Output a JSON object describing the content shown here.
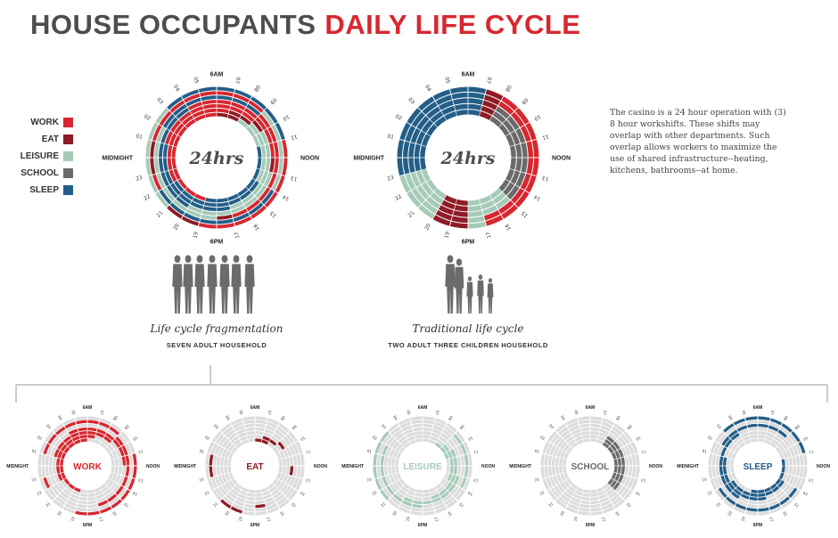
{
  "title": {
    "part1": "HOUSE OCCUPANTS",
    "part2": "DAILY LIFE CYCLE"
  },
  "colors": {
    "work": "#d7272f",
    "eat": "#8e1b25",
    "leisure": "#a5cbb8",
    "school": "#6a6a6a",
    "sleep": "#235e88",
    "empty": "#dcdcdc",
    "text": "#4d4d4f"
  },
  "legend": [
    {
      "label": "WORK",
      "color": "#d7272f"
    },
    {
      "label": "EAT",
      "color": "#8e1b25"
    },
    {
      "label": "LEISURE",
      "color": "#a5cbb8"
    },
    {
      "label": "SCHOOL",
      "color": "#6a6a6a"
    },
    {
      "label": "SLEEP",
      "color": "#235e88"
    }
  ],
  "note": "The casino is a 24 hour operation with (3) 8 hour workshifts. These shifts may overlap with other departments. Such overlap allows workers to maximize the use of shared infrastructure--heating, kitchens, bathrooms--at home.",
  "clock": {
    "top": "6AM",
    "right": "NOON",
    "bottom": "6PM",
    "left": "MIDNIGHT",
    "hours": [
      "01",
      "02",
      "03",
      "04",
      "05",
      "07",
      "08",
      "09",
      "10",
      "11",
      "13",
      "14",
      "15",
      "16",
      "17",
      "19",
      "20",
      "21",
      "22",
      "23"
    ],
    "center_label": "24hrs"
  },
  "captions": [
    {
      "title": "Life cycle fragmentation",
      "subtitle": "SEVEN ADULT HOUSEHOLD"
    },
    {
      "title": "Traditional life cycle",
      "subtitle": "TWO ADULT THREE CHILDREN HOUSEHOLD"
    }
  ],
  "small_labels": [
    "WORK",
    "EAT",
    "LEISURE",
    "SCHOOL",
    "SLEEP"
  ],
  "chart_data": [
    {
      "type": "radial-timeline",
      "subtitle": "SEVEN ADULT HOUSEHOLD",
      "caption": "Life cycle fragmentation",
      "center": "24hrs",
      "hours_per_ring": 24,
      "rings_inner_to_outer": [
        "WWWWWWEELLLSSSSSSSSWWWWW",
        "WWWWWWWEELLLLLSSSSSSSSWW",
        "SWWWWWWWWELLLLLLLSSSSSSS",
        "SSSSWWWWWWWWELLLLLLLSSSS",
        "LLSSSSSSSWWWWWWWWELLLLLL",
        "EWWWWWWWWLLLLLSSSSSSSSWE",
        "LLLSSSSSSSSWWWWWWWWEELLL"
      ]
    },
    {
      "type": "radial-timeline",
      "subtitle": "TWO ADULT THREE CHILDREN HOUSEHOLD",
      "caption": "Traditional life cycle",
      "center": "24hrs",
      "hours_per_ring": 24,
      "rings_inner_to_outer": [
        "SSSSSSSEHHHHHHHLLLEELLLS",
        "SSSSSSSEHHHHHHHLLLEELLLS",
        "SSSSSSSEHHHHHHHLLLEELLLS",
        "SSSSSSSEWWWWWWWWWLEELLLS",
        "SSSSSSSEWWWWWWWWWLEELLLS"
      ]
    }
  ]
}
